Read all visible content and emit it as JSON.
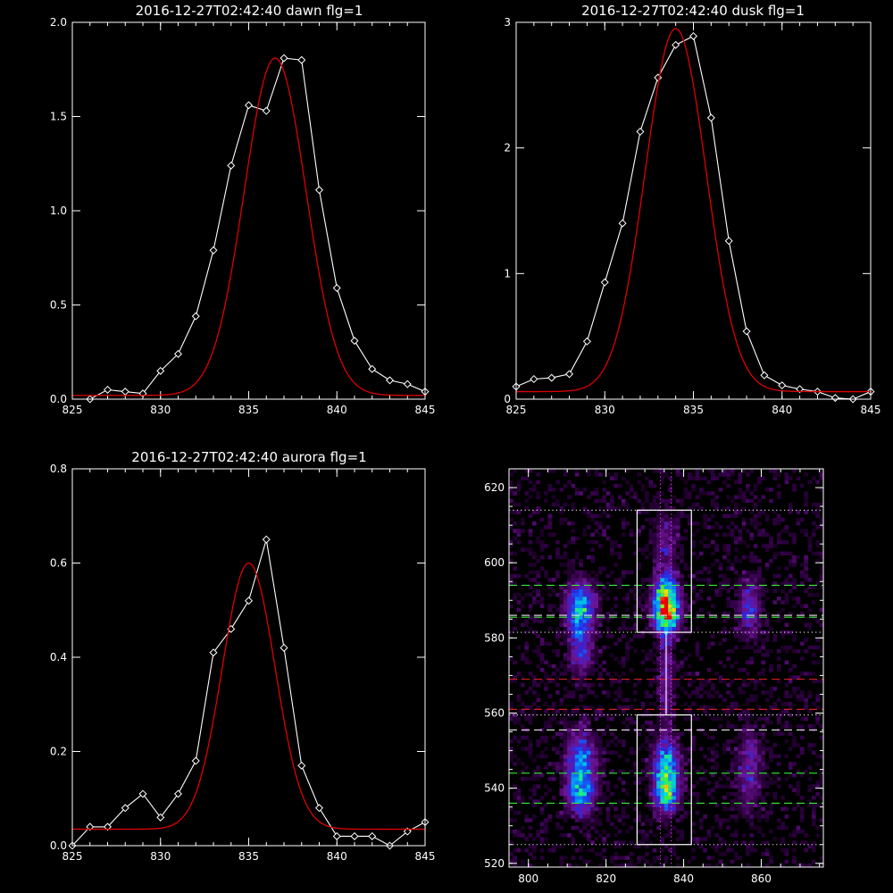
{
  "colors": {
    "background": "#000000",
    "axes": "#ffffff",
    "data": "#ffffff",
    "fit": "#e00000"
  },
  "chart_data": [
    {
      "type": "line",
      "title": "2016-12-27T02:42:40 dawn flg=1",
      "xlim": [
        825,
        845
      ],
      "ylim": [
        0,
        2.0
      ],
      "xticks": [
        "825",
        "830",
        "835",
        "840",
        "845"
      ],
      "yticks": [
        "0.0",
        "0.5",
        "1.0",
        "1.5",
        "2.0"
      ],
      "series": [
        {
          "style": "line+diamond",
          "x": [
            826,
            827,
            828,
            829,
            830,
            831,
            832,
            833,
            834,
            835,
            836,
            837,
            838,
            839,
            840,
            841,
            842,
            843,
            844,
            845
          ],
          "y": [
            0.0,
            0.05,
            0.04,
            0.03,
            0.15,
            0.24,
            0.44,
            0.79,
            1.24,
            1.56,
            1.53,
            1.81,
            1.8,
            1.11,
            0.59,
            0.31,
            0.16,
            0.1,
            0.08,
            0.04
          ]
        },
        {
          "style": "fit",
          "gaussian": {
            "amplitude": 1.79,
            "center": 836.5,
            "sigma": 1.75,
            "offset": 0.02
          }
        }
      ]
    },
    {
      "type": "line",
      "title": "2016-12-27T02:42:40 dusk flg=1",
      "xlim": [
        825,
        845
      ],
      "ylim": [
        0,
        3
      ],
      "xticks": [
        "825",
        "830",
        "835",
        "840",
        "845"
      ],
      "yticks": [
        "0",
        "1",
        "2",
        "3"
      ],
      "series": [
        {
          "style": "line+diamond",
          "x": [
            825,
            826,
            827,
            828,
            829,
            830,
            831,
            832,
            833,
            834,
            835,
            836,
            837,
            838,
            839,
            840,
            841,
            842,
            843,
            844,
            845
          ],
          "y": [
            0.1,
            0.16,
            0.17,
            0.2,
            0.46,
            0.93,
            1.4,
            2.13,
            2.56,
            2.82,
            2.89,
            2.24,
            1.26,
            0.54,
            0.19,
            0.11,
            0.08,
            0.06,
            0.01,
            0.0,
            0.06
          ]
        },
        {
          "style": "fit",
          "gaussian": {
            "amplitude": 2.89,
            "center": 834.0,
            "sigma": 1.72,
            "offset": 0.06
          }
        }
      ]
    },
    {
      "type": "line",
      "title": "2016-12-27T02:42:40 aurora flg=1",
      "xlim": [
        825,
        845
      ],
      "ylim": [
        0,
        0.8
      ],
      "xticks": [
        "825",
        "830",
        "835",
        "840",
        "845"
      ],
      "yticks": [
        "0.0",
        "0.2",
        "0.4",
        "0.6",
        "0.8"
      ],
      "series": [
        {
          "style": "line+diamond",
          "x": [
            825,
            826,
            827,
            828,
            829,
            830,
            831,
            832,
            833,
            834,
            835,
            836,
            837,
            838,
            839,
            840,
            841,
            842,
            843,
            844,
            845
          ],
          "y": [
            0.0,
            0.04,
            0.04,
            0.08,
            0.11,
            0.06,
            0.11,
            0.18,
            0.41,
            0.46,
            0.52,
            0.65,
            0.42,
            0.17,
            0.08,
            0.02,
            0.02,
            0.02,
            0.0,
            0.03,
            0.05
          ]
        },
        {
          "style": "fit",
          "gaussian": {
            "amplitude": 0.565,
            "center": 835.0,
            "sigma": 1.5,
            "offset": 0.035
          }
        }
      ]
    },
    {
      "type": "heatmap",
      "xlim": [
        795,
        876
      ],
      "ylim": [
        519,
        625
      ],
      "xticks": [
        "800",
        "820",
        "840",
        "860"
      ],
      "yticks": [
        "520",
        "540",
        "560",
        "580",
        "600",
        "620"
      ],
      "colormap": "rainbow",
      "blobs": [
        {
          "x": 813.5,
          "y": 588,
          "sx": 2.5,
          "sy": 4.5,
          "amp": 0.55
        },
        {
          "x": 813.5,
          "y": 577,
          "sx": 2.0,
          "sy": 5.0,
          "amp": 0.28
        },
        {
          "x": 813.5,
          "y": 546,
          "sx": 2.5,
          "sy": 6.0,
          "amp": 0.45
        },
        {
          "x": 813.5,
          "y": 538,
          "sx": 2.2,
          "sy": 3.5,
          "amp": 0.35
        },
        {
          "x": 835.5,
          "y": 587,
          "sx": 2.2,
          "sy": 3.5,
          "amp": 0.95
        },
        {
          "x": 835.5,
          "y": 593,
          "sx": 2.0,
          "sy": 3.0,
          "amp": 0.45
        },
        {
          "x": 835.5,
          "y": 545,
          "sx": 2.2,
          "sy": 5.0,
          "amp": 0.6
        },
        {
          "x": 835.5,
          "y": 538,
          "sx": 2.0,
          "sy": 3.0,
          "amp": 0.45
        },
        {
          "x": 835.5,
          "y": 570,
          "sx": 1.2,
          "sy": 10.0,
          "amp": 0.22
        },
        {
          "x": 835.5,
          "y": 604,
          "sx": 2.0,
          "sy": 6.0,
          "amp": 0.18
        },
        {
          "x": 857.0,
          "y": 588,
          "sx": 2.0,
          "sy": 5.0,
          "amp": 0.3
        },
        {
          "x": 857.0,
          "y": 545,
          "sx": 2.0,
          "sy": 7.0,
          "amp": 0.24
        }
      ],
      "boxes": [
        {
          "x0": 828,
          "x1": 842,
          "y0": 581.5,
          "y1": 614,
          "color": "#ffffff",
          "style": "solid"
        },
        {
          "x0": 828,
          "x1": 842,
          "y0": 525,
          "y1": 559.5,
          "color": "#ffffff",
          "style": "solid"
        }
      ],
      "hlines": [
        {
          "y": 614,
          "color": "#e8e8e8",
          "style": "dotted"
        },
        {
          "y": 594,
          "color": "#33ee33",
          "style": "dashed"
        },
        {
          "y": 586,
          "color": "#e8e8e8",
          "style": "dashed"
        },
        {
          "y": 585.5,
          "color": "#33ee33",
          "style": "dashed"
        },
        {
          "y": 581.5,
          "color": "#e8e8e8",
          "style": "dotted"
        },
        {
          "y": 569,
          "color": "#ee2222",
          "style": "dashed"
        },
        {
          "y": 561,
          "color": "#ee2222",
          "style": "dashed"
        },
        {
          "y": 559.5,
          "color": "#e8e8e8",
          "style": "dotted"
        },
        {
          "y": 555.5,
          "color": "#e8e8e8",
          "style": "dashed"
        },
        {
          "y": 544,
          "color": "#33ee33",
          "style": "dashed"
        },
        {
          "y": 536,
          "color": "#33ee33",
          "style": "dashed"
        },
        {
          "y": 525,
          "color": "#e8e8e8",
          "style": "dotted"
        }
      ],
      "vlines": [
        {
          "x": 834.0,
          "color": "#e040e0",
          "style": "dotted"
        },
        {
          "x": 836.8,
          "color": "#e040e0",
          "style": "dotted"
        },
        {
          "x": 835.5,
          "y0": 559.5,
          "y1": 581.5,
          "color": "#ffffff",
          "style": "solid"
        }
      ]
    }
  ]
}
